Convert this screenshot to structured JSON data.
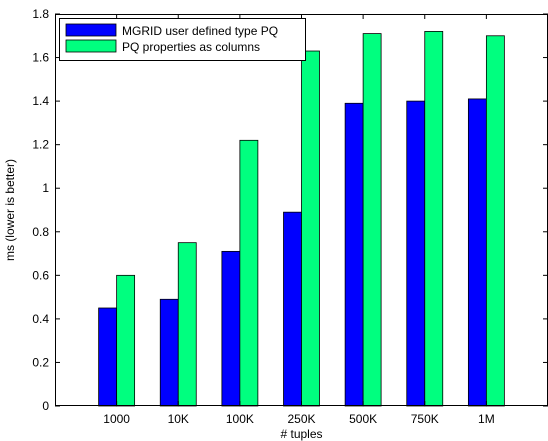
{
  "chart_data": {
    "type": "bar",
    "categories": [
      "1000",
      "10K",
      "100K",
      "250K",
      "500K",
      "750K",
      "1M"
    ],
    "series": [
      {
        "name": "MGRID user defined type PQ",
        "color": "#0000ff",
        "values": [
          0.45,
          0.49,
          0.71,
          0.89,
          1.39,
          1.4,
          1.41
        ]
      },
      {
        "name": "PQ properties as columns",
        "color": "#00ff7f",
        "values": [
          0.6,
          0.75,
          1.22,
          1.63,
          1.71,
          1.72,
          1.7
        ]
      }
    ],
    "xlabel": "# tuples",
    "ylabel": "ms (lower is better)",
    "ylim": [
      0,
      1.8
    ],
    "yticks": [
      "0",
      "0.2",
      "0.4",
      "0.6",
      "0.8",
      "1",
      "1.2",
      "1.4",
      "1.6",
      "1.8"
    ],
    "legend_position": "top-left",
    "grid": false
  }
}
